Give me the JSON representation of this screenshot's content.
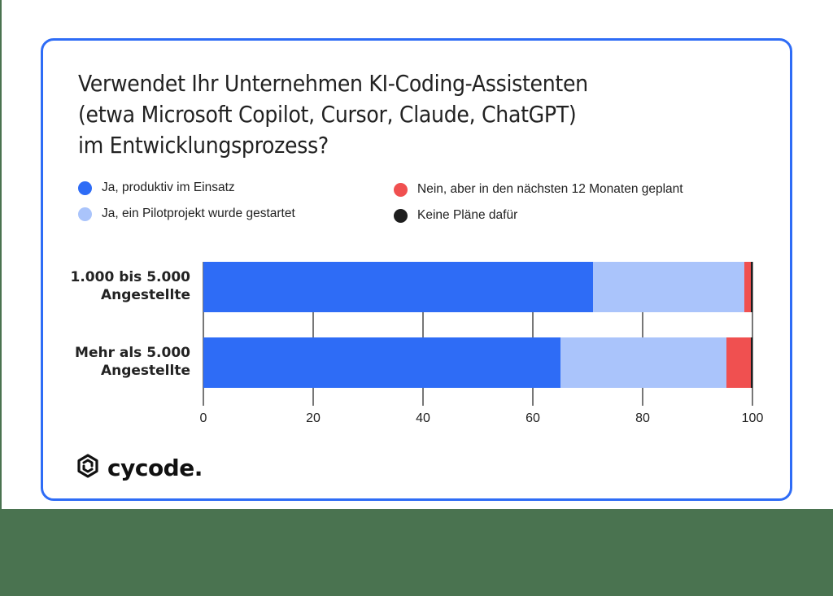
{
  "title_lines": [
    "Verwendet Ihr Unternehmen KI-Coding-Assistenten",
    "(etwa Microsoft Copilot, Cursor, Claude, ChatGPT)",
    "im Entwicklungsprozess?"
  ],
  "legend": [
    {
      "label": "Ja, produktiv im Einsatz",
      "color": "#2e6cf6"
    },
    {
      "label": "Ja, ein Pilotprojekt wurde gestartet",
      "color": "#aac4fb"
    },
    {
      "label": "Nein, aber in den nächsten 12 Monaten geplant",
      "color": "#f05050"
    },
    {
      "label": "Keine Pläne dafür",
      "color": "#1e1e1e"
    }
  ],
  "categories": [
    {
      "line1": "1.000 bis 5.000",
      "line2": "Angestellte"
    },
    {
      "line1": "Mehr als 5.000",
      "line2": "Angestellte"
    }
  ],
  "x_ticks": [
    "0",
    "20",
    "40",
    "60",
    "80",
    "100"
  ],
  "logo": {
    "text": "cycode."
  },
  "chart_data": {
    "type": "bar",
    "orientation": "horizontal",
    "stacked": true,
    "title": "Verwendet Ihr Unternehmen KI-Coding-Assistenten (etwa Microsoft Copilot, Cursor, Claude, ChatGPT) im Entwicklungsprozess?",
    "categories": [
      "1.000 bis 5.000 Angestellte",
      "Mehr als 5.000 Angestellte"
    ],
    "series": [
      {
        "name": "Ja, produktiv im Einsatz",
        "color": "#2e6cf6",
        "values": [
          71,
          65
        ]
      },
      {
        "name": "Ja, ein Pilotprojekt wurde gestartet",
        "color": "#aac4fb",
        "values": [
          27.5,
          30.3
        ]
      },
      {
        "name": "Nein, aber in den nächsten 12 Monaten geplant",
        "color": "#f05050",
        "values": [
          1.2,
          4.4
        ]
      },
      {
        "name": "Keine Pläne dafür",
        "color": "#1e1e1e",
        "values": [
          0.3,
          0.3
        ]
      }
    ],
    "xlabel": "",
    "ylabel": "",
    "xlim": [
      0,
      100
    ],
    "x_ticks": [
      0,
      20,
      40,
      60,
      80,
      100
    ],
    "grid": "vertical",
    "legend_position": "top"
  }
}
